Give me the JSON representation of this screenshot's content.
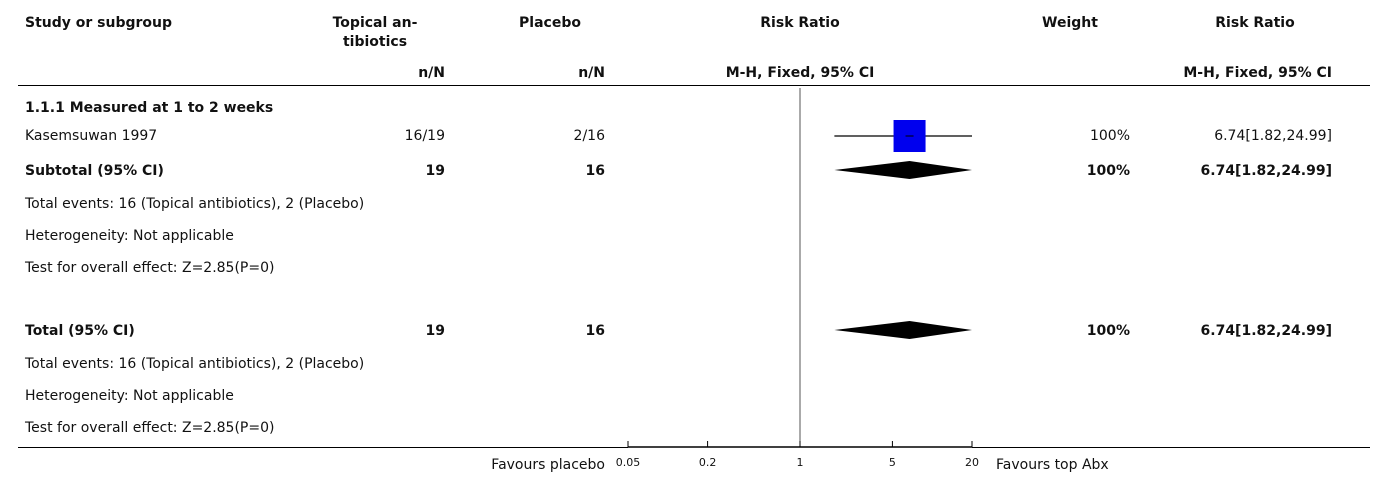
{
  "header": {
    "study": "Study or subgroup",
    "exp_line1": "Topical an-",
    "exp_line2": "tibiotics",
    "ctrl": "Placebo",
    "rr_plot": "Risk Ratio",
    "weight": "Weight",
    "rr_text": "Risk Ratio",
    "exp_sub": "n/N",
    "ctrl_sub": "n/N",
    "rr_plot_sub": "M-H, Fixed, 95% CI",
    "rr_text_sub": "M-H, Fixed, 95% CI"
  },
  "subgroup": {
    "title": "1.1.1 Measured at 1 to 2 weeks",
    "subtotal_label": "Subtotal (95% CI)",
    "subtotal_exp": "19",
    "subtotal_ctrl": "16",
    "subtotal_weight": "100%",
    "subtotal_rr": "6.74[1.82,24.99]",
    "events": "Total events: 16 (Topical antibiotics), 2 (Placebo)",
    "heterogeneity": "Heterogeneity: Not applicable",
    "overall": "Test for overall effect: Z=2.85(P=0)"
  },
  "total": {
    "label": "Total (95% CI)",
    "exp": "19",
    "ctrl": "16",
    "weight": "100%",
    "rr": "6.74[1.82,24.99]",
    "events": "Total events: 16 (Topical antibiotics), 2 (Placebo)",
    "heterogeneity": "Heterogeneity: Not applicable",
    "overall": "Test for overall effect: Z=2.85(P=0)"
  },
  "footer": {
    "favours_left": "Favours placebo",
    "favours_right": "Favours top Abx"
  },
  "colors": {
    "study_marker": "#0000ee",
    "diamond": "#000000"
  },
  "chart_data": {
    "type": "forest",
    "scale": "log",
    "xlim": [
      0.05,
      20
    ],
    "ticks": [
      0.05,
      0.2,
      1,
      5,
      20
    ],
    "tick_labels": [
      "0.05",
      "0.2",
      "1",
      "5",
      "20"
    ],
    "studies": [
      {
        "name": "Kasemsuwan 1997",
        "exp": "16/19",
        "ctrl": "2/16",
        "weight": "100%",
        "rr": 6.74,
        "lo": 1.82,
        "hi": 24.99,
        "rr_text": "6.74[1.82,24.99]"
      }
    ],
    "summaries": [
      {
        "name": "subtotal",
        "rr": 6.74,
        "lo": 1.82,
        "hi": 24.99
      },
      {
        "name": "total",
        "rr": 6.74,
        "lo": 1.82,
        "hi": 24.99
      }
    ]
  }
}
